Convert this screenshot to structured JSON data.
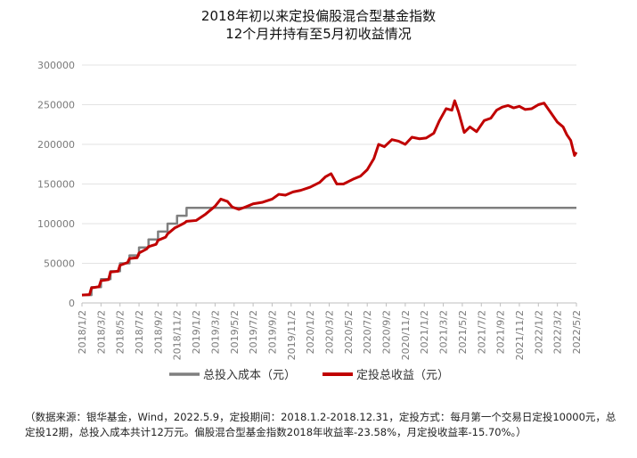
{
  "title_line1": "2018年初以来定投偏股混合型基金指数",
  "title_line2": "12个月并持有至5月初收益情况",
  "note": "（数据来源：银华基金，Wind，2022.5.9，定投期间：2018.1.2-2018.12.31，定投方式：每月第一个交易日定投10000元，总定投12期，总投入成本共计12万元。偏股混合型基金指数2018年收益率-23.58%，月定投收益率-15.70%。）",
  "chart_data": {
    "type": "line",
    "title": "2018年初以来定投偏股混合型基金指数 12个月并持有至5月初收益情况",
    "ylim": [
      0,
      300000
    ],
    "y_ticks": [
      0,
      50000,
      100000,
      150000,
      200000,
      250000,
      300000
    ],
    "y_tick_labels": [
      "0",
      "50000",
      "100000",
      "150000",
      "200000",
      "250000",
      "300000"
    ],
    "x_tick_labels": [
      "2018/1/2",
      "2018/3/2",
      "2018/5/2",
      "2018/7/2",
      "2018/9/2",
      "2018/11/2",
      "2019/1/2",
      "2019/3/2",
      "2019/5/2",
      "2019/7/2",
      "2019/9/2",
      "2019/11/2",
      "2020/1/2",
      "2020/3/2",
      "2020/5/2",
      "2020/7/2",
      "2020/9/2",
      "2020/11/2",
      "2021/1/2",
      "2021/3/2",
      "2021/5/2",
      "2021/7/2",
      "2021/9/2",
      "2021/11/2",
      "2022/1/2",
      "2022/3/2",
      "2022/5/2"
    ],
    "month_index_range": [
      0,
      52
    ],
    "series": [
      {
        "name": "总投入成本（元）",
        "color": "#7f7f7f",
        "step": true,
        "points": [
          [
            0,
            10000
          ],
          [
            1,
            20000
          ],
          [
            2,
            30000
          ],
          [
            3,
            40000
          ],
          [
            4,
            50000
          ],
          [
            5,
            60000
          ],
          [
            6,
            70000
          ],
          [
            7,
            80000
          ],
          [
            8,
            90000
          ],
          [
            9,
            100000
          ],
          [
            10,
            110000
          ],
          [
            11,
            120000
          ],
          [
            52,
            120000
          ]
        ]
      },
      {
        "name": "定投总收益（元）",
        "color": "#c00000",
        "points": [
          [
            0,
            10000
          ],
          [
            0.8,
            10500
          ],
          [
            1,
            19000
          ],
          [
            1.8,
            20500
          ],
          [
            2,
            28000
          ],
          [
            2.8,
            29500
          ],
          [
            3,
            39000
          ],
          [
            3.8,
            40000
          ],
          [
            4,
            47500
          ],
          [
            4.8,
            51000
          ],
          [
            5,
            56000
          ],
          [
            5.8,
            57000
          ],
          [
            6,
            63000
          ],
          [
            6.8,
            68000
          ],
          [
            7,
            71000
          ],
          [
            7.8,
            74000
          ],
          [
            8,
            79000
          ],
          [
            8.8,
            83000
          ],
          [
            9,
            87000
          ],
          [
            9.8,
            95000
          ],
          [
            10,
            96000
          ],
          [
            10.8,
            101000
          ],
          [
            11,
            103000
          ],
          [
            12,
            104000
          ],
          [
            13,
            112000
          ],
          [
            14,
            122000
          ],
          [
            14.6,
            131000
          ],
          [
            15.3,
            128000
          ],
          [
            15.8,
            121000
          ],
          [
            16.5,
            118000
          ],
          [
            17.2,
            121000
          ],
          [
            18,
            125000
          ],
          [
            19,
            127000
          ],
          [
            20,
            131000
          ],
          [
            20.7,
            137000
          ],
          [
            21.4,
            136000
          ],
          [
            22.2,
            140000
          ],
          [
            23,
            142000
          ],
          [
            24,
            146000
          ],
          [
            25,
            152000
          ],
          [
            25.6,
            159000
          ],
          [
            26.2,
            163000
          ],
          [
            26.8,
            150000
          ],
          [
            27.5,
            150000
          ],
          [
            28.5,
            156000
          ],
          [
            29.3,
            160000
          ],
          [
            30,
            168000
          ],
          [
            30.7,
            182000
          ],
          [
            31.2,
            200000
          ],
          [
            31.8,
            197000
          ],
          [
            32.6,
            206000
          ],
          [
            33.3,
            204000
          ],
          [
            34,
            200000
          ],
          [
            34.7,
            209000
          ],
          [
            35.5,
            207000
          ],
          [
            36.2,
            208000
          ],
          [
            37,
            214000
          ],
          [
            37.6,
            230000
          ],
          [
            38.3,
            245000
          ],
          [
            38.9,
            243000
          ],
          [
            39.2,
            255000
          ],
          [
            39.6,
            241000
          ],
          [
            40.2,
            215000
          ],
          [
            40.8,
            222000
          ],
          [
            41.5,
            216000
          ],
          [
            42.3,
            230000
          ],
          [
            43,
            233000
          ],
          [
            43.6,
            243000
          ],
          [
            44.2,
            247000
          ],
          [
            44.8,
            249000
          ],
          [
            45.4,
            246000
          ],
          [
            46,
            248000
          ],
          [
            46.6,
            244000
          ],
          [
            47.3,
            245000
          ],
          [
            48,
            250000
          ],
          [
            48.6,
            252000
          ],
          [
            49.3,
            240000
          ],
          [
            50,
            228000
          ],
          [
            50.6,
            222000
          ],
          [
            51,
            212000
          ],
          [
            51.4,
            205000
          ],
          [
            51.8,
            186000
          ],
          [
            52,
            190000
          ]
        ]
      }
    ],
    "legend_position": "bottom-center"
  }
}
